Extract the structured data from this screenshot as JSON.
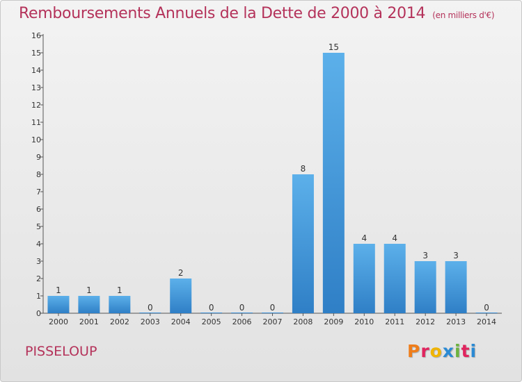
{
  "title": "Remboursements Annuels de la Dette de 2000 à 2014",
  "unit": "(en milliers d'€)",
  "commune": "PISSELOUP",
  "logo": {
    "text": "Proxiti",
    "colors": [
      "#ef7d1a",
      "#e0245e",
      "#f0b400",
      "#2a8ad4",
      "#6cb33f",
      "#e0245e",
      "#2a8ad4"
    ]
  },
  "colors": {
    "bar": "#3a8fd6",
    "bar_light": "#5cb0ea",
    "title": "#b4325a"
  },
  "chart_data": {
    "type": "bar",
    "title": "Remboursements Annuels de la Dette de 2000 à 2014",
    "xlabel": "",
    "ylabel": "",
    "categories": [
      "2000",
      "2001",
      "2002",
      "2003",
      "2004",
      "2005",
      "2006",
      "2007",
      "2008",
      "2009",
      "2010",
      "2011",
      "2012",
      "2013",
      "2014"
    ],
    "values": [
      1,
      1,
      1,
      0,
      2,
      0,
      0,
      0,
      8,
      15,
      4,
      4,
      3,
      3,
      0
    ],
    "ylim": [
      0,
      16
    ],
    "yticks": [
      0,
      1,
      2,
      3,
      4,
      5,
      6,
      7,
      8,
      9,
      10,
      11,
      12,
      13,
      14,
      15,
      16
    ],
    "grid": false,
    "data_labels": true
  }
}
